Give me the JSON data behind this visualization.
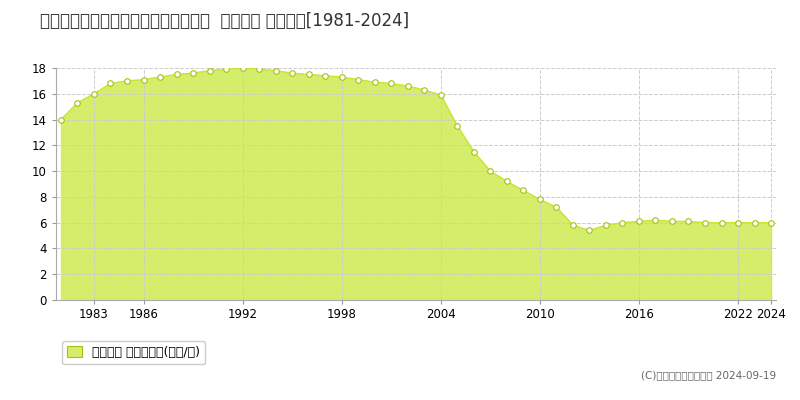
{
  "title": "宮城県石巻市吉野町３丁目１５３番８  公示地価 地価推移[1981-2024]",
  "years": [
    1981,
    1982,
    1983,
    1984,
    1985,
    1986,
    1987,
    1988,
    1989,
    1990,
    1991,
    1992,
    1993,
    1994,
    1995,
    1996,
    1997,
    1998,
    1999,
    2000,
    2001,
    2002,
    2003,
    2004,
    2005,
    2006,
    2007,
    2008,
    2009,
    2010,
    2011,
    2012,
    2013,
    2014,
    2015,
    2016,
    2017,
    2018,
    2019,
    2020,
    2021,
    2022,
    2023,
    2024
  ],
  "values": [
    14.0,
    15.3,
    16.0,
    16.8,
    17.0,
    17.1,
    17.3,
    17.5,
    17.6,
    17.8,
    17.9,
    18.0,
    17.9,
    17.8,
    17.6,
    17.5,
    17.4,
    17.3,
    17.1,
    16.9,
    16.8,
    16.6,
    16.3,
    15.9,
    13.5,
    11.5,
    10.0,
    9.2,
    8.5,
    7.8,
    7.2,
    5.8,
    5.4,
    5.8,
    6.0,
    6.1,
    6.2,
    6.1,
    6.1,
    6.0,
    6.0,
    6.0,
    6.0,
    6.0
  ],
  "line_color": "#c8e632",
  "fill_color": "#d4ed6a",
  "marker_color": "#ffffff",
  "marker_edge_color": "#a8c010",
  "background_color": "#ffffff",
  "plot_bg_color": "#ffffff",
  "grid_color": "#cccccc",
  "ylim": [
    0,
    18
  ],
  "yticks": [
    0,
    2,
    4,
    6,
    8,
    10,
    12,
    14,
    16,
    18
  ],
  "xtick_years": [
    1983,
    1986,
    1992,
    1998,
    2004,
    2010,
    2016,
    2022,
    2024
  ],
  "legend_label": "公示地価 平均坪単価(万円/坪)",
  "copyright_text": "(C)土地価格ドットコム 2024-09-19",
  "title_fontsize": 12,
  "axis_fontsize": 8.5,
  "legend_fontsize": 9
}
